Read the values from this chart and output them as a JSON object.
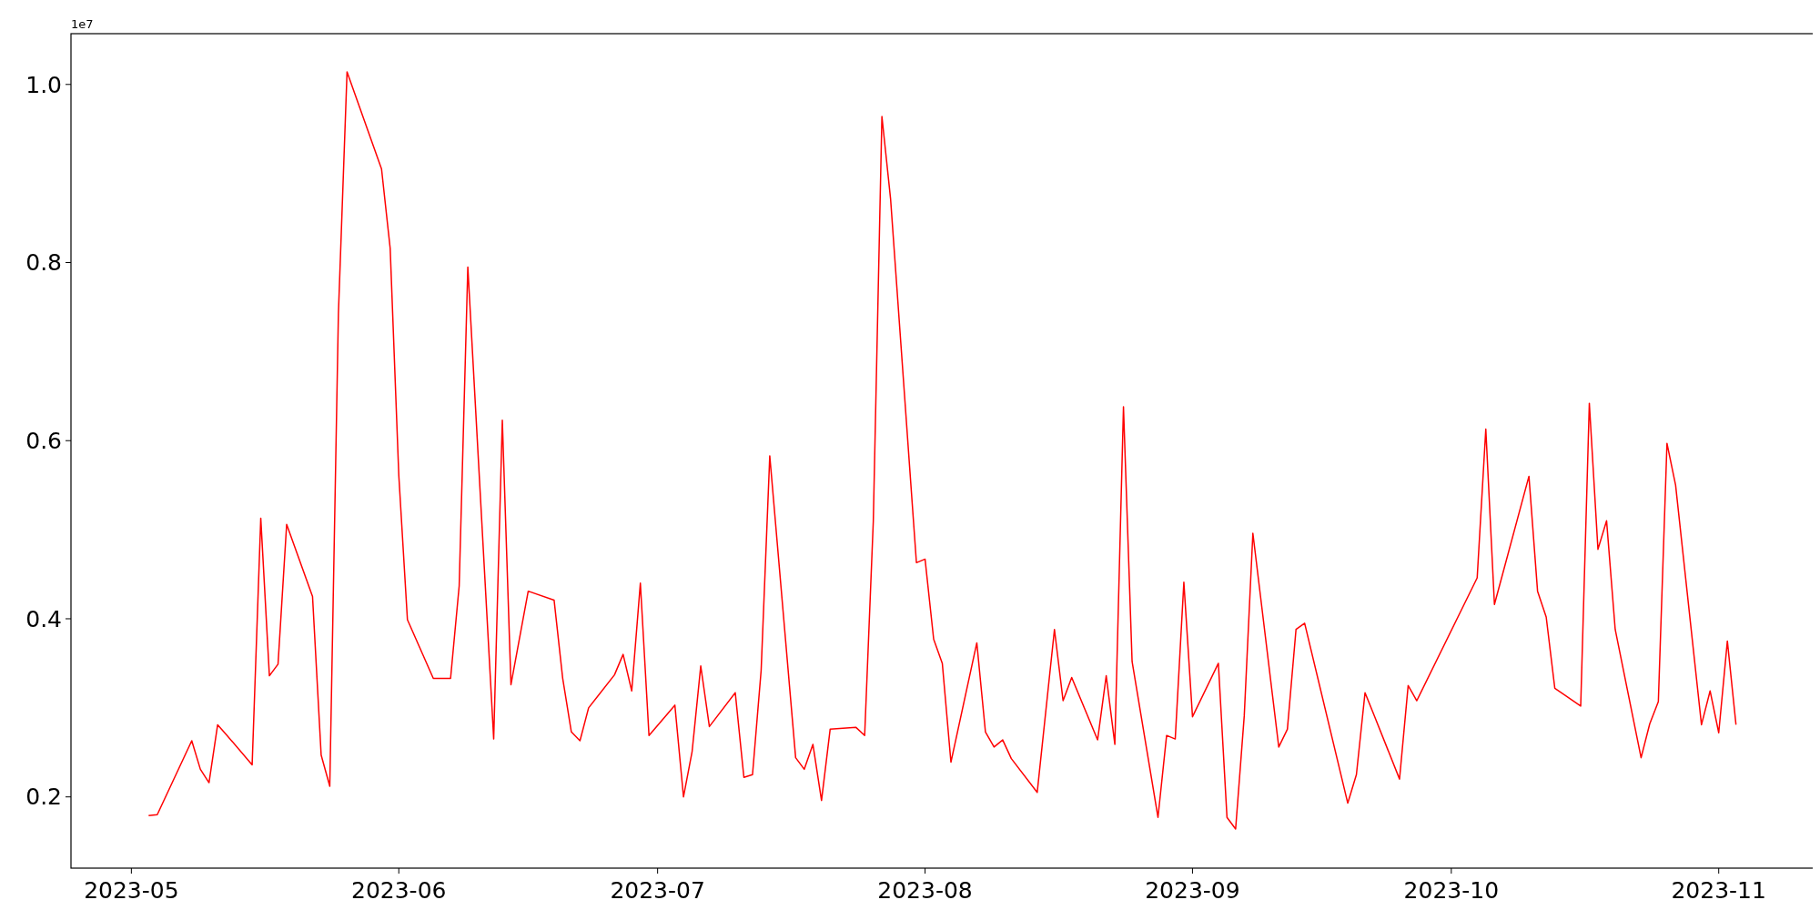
{
  "chart_data": {
    "type": "line",
    "annotations": [
      "1e7"
    ],
    "xlim": [
      "2023-04-24",
      "2023-11-12"
    ],
    "ylim": [
      0.12,
      1.057
    ],
    "xticks": [
      {
        "value": "2023-05-01",
        "label": "2023-05"
      },
      {
        "value": "2023-06-01",
        "label": "2023-06"
      },
      {
        "value": "2023-07-01",
        "label": "2023-07"
      },
      {
        "value": "2023-08-01",
        "label": "2023-08"
      },
      {
        "value": "2023-09-01",
        "label": "2023-09"
      },
      {
        "value": "2023-10-01",
        "label": "2023-10"
      },
      {
        "value": "2023-11-01",
        "label": "2023-11"
      }
    ],
    "yticks": [
      0.2,
      0.4,
      0.6,
      0.8,
      {
        "value": 1,
        "label": "1.0"
      }
    ],
    "series": [
      {
        "color": "#ff0000",
        "x": [
          "2023-05-03",
          "2023-05-04",
          "2023-05-08",
          "2023-05-09",
          "2023-05-10",
          "2023-05-11",
          "2023-05-12",
          "2023-05-15",
          "2023-05-16",
          "2023-05-17",
          "2023-05-18",
          "2023-05-19",
          "2023-05-22",
          "2023-05-23",
          "2023-05-24",
          "2023-05-25",
          "2023-05-26",
          "2023-05-30",
          "2023-05-31",
          "2023-06-01",
          "2023-06-02",
          "2023-06-05",
          "2023-06-07",
          "2023-06-08",
          "2023-06-09",
          "2023-06-12",
          "2023-06-13",
          "2023-06-14",
          "2023-06-16",
          "2023-06-19",
          "2023-06-20",
          "2023-06-21",
          "2023-06-22",
          "2023-06-23",
          "2023-06-26",
          "2023-06-27",
          "2023-06-28",
          "2023-06-29",
          "2023-06-30",
          "2023-07-03",
          "2023-07-04",
          "2023-07-05",
          "2023-07-06",
          "2023-07-07",
          "2023-07-10",
          "2023-07-11",
          "2023-07-12",
          "2023-07-13",
          "2023-07-14",
          "2023-07-17",
          "2023-07-18",
          "2023-07-19",
          "2023-07-20",
          "2023-07-21",
          "2023-07-24",
          "2023-07-25",
          "2023-07-26",
          "2023-07-27",
          "2023-07-28",
          "2023-07-31",
          "2023-08-01",
          "2023-08-02",
          "2023-08-03",
          "2023-08-04",
          "2023-08-07",
          "2023-08-08",
          "2023-08-09",
          "2023-08-10",
          "2023-08-11",
          "2023-08-14",
          "2023-08-16",
          "2023-08-17",
          "2023-08-18",
          "2023-08-21",
          "2023-08-22",
          "2023-08-23",
          "2023-08-24",
          "2023-08-25",
          "2023-08-28",
          "2023-08-29",
          "2023-08-30",
          "2023-08-31",
          "2023-09-01",
          "2023-09-04",
          "2023-09-05",
          "2023-09-06",
          "2023-09-07",
          "2023-09-08",
          "2023-09-11",
          "2023-09-12",
          "2023-09-13",
          "2023-09-14",
          "2023-09-19",
          "2023-09-20",
          "2023-09-21",
          "2023-09-22",
          "2023-09-25",
          "2023-09-26",
          "2023-09-27",
          "2023-10-04",
          "2023-10-05",
          "2023-10-06",
          "2023-10-10",
          "2023-10-11",
          "2023-10-12",
          "2023-10-13",
          "2023-10-16",
          "2023-10-17",
          "2023-10-18",
          "2023-10-19",
          "2023-10-20",
          "2023-10-23",
          "2023-10-24",
          "2023-10-25",
          "2023-10-26",
          "2023-10-27",
          "2023-10-30",
          "2023-10-31",
          "2023-11-01",
          "2023-11-02",
          "2023-11-03"
        ],
        "values": [
          0.179,
          0.18,
          0.263,
          0.231,
          0.216,
          0.281,
          0.27,
          0.236,
          0.513,
          0.336,
          0.349,
          0.506,
          0.425,
          0.247,
          0.212,
          0.743,
          1.014,
          0.905,
          0.816,
          0.561,
          0.399,
          0.333,
          0.333,
          0.437,
          0.795,
          0.265,
          0.623,
          0.326,
          0.431,
          0.421,
          0.333,
          0.273,
          0.263,
          0.3,
          0.337,
          0.36,
          0.319,
          0.44,
          0.269,
          0.303,
          0.2,
          0.251,
          0.347,
          0.279,
          0.317,
          0.222,
          0.225,
          0.342,
          0.583,
          0.244,
          0.231,
          0.259,
          0.196,
          0.276,
          0.278,
          0.269,
          0.509,
          0.964,
          0.872,
          0.463,
          0.467,
          0.377,
          0.35,
          0.239,
          0.373,
          0.273,
          0.256,
          0.264,
          0.243,
          0.205,
          0.388,
          0.308,
          0.334,
          0.264,
          0.336,
          0.259,
          0.638,
          0.352,
          0.177,
          0.269,
          0.265,
          0.441,
          0.29,
          0.35,
          0.177,
          0.164,
          0.291,
          0.496,
          0.256,
          0.276,
          0.388,
          0.395,
          0.193,
          0.225,
          0.317,
          0.293,
          0.22,
          0.325,
          0.308,
          0.446,
          0.613,
          0.416,
          0.56,
          0.431,
          0.402,
          0.322,
          0.302,
          0.642,
          0.478,
          0.51,
          0.388,
          0.244,
          0.282,
          0.307,
          0.597,
          0.55,
          0.281,
          0.319,
          0.272,
          0.375,
          0.281
        ]
      }
    ]
  }
}
